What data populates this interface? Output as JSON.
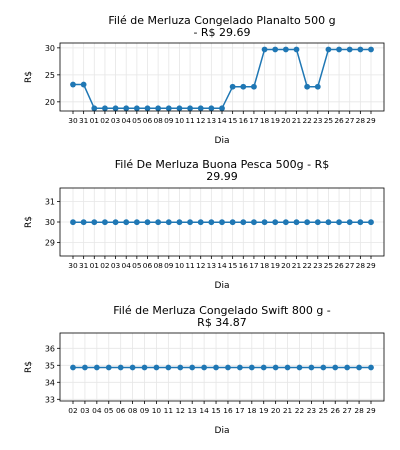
{
  "colors": {
    "series": "#1f77b4"
  },
  "chart_data": [
    {
      "type": "line",
      "title_lines": [
        "Filé de Merluza Congelado Planalto 500 g",
        "- R$ 29.69"
      ],
      "xlabel": "Dia",
      "ylabel": "R$",
      "grid": true,
      "ylim": [
        18.3,
        30.9
      ],
      "yticks": [
        20,
        25,
        30
      ],
      "categories": [
        "30",
        "31",
        "01",
        "02",
        "03",
        "04",
        "05",
        "06",
        "08",
        "09",
        "10",
        "11",
        "12",
        "13",
        "14",
        "15",
        "16",
        "17",
        "18",
        "19",
        "20",
        "21",
        "22",
        "23",
        "25",
        "26",
        "27",
        "28",
        "29"
      ],
      "values": [
        23.2,
        23.2,
        18.8,
        18.8,
        18.8,
        18.8,
        18.8,
        18.8,
        18.8,
        18.8,
        18.8,
        18.8,
        18.8,
        18.8,
        18.8,
        22.8,
        22.8,
        22.8,
        29.7,
        29.7,
        29.7,
        29.7,
        22.8,
        22.8,
        29.7,
        29.7,
        29.7,
        29.7,
        29.7
      ]
    },
    {
      "type": "line",
      "title_lines": [
        "Filé De Merluza Buona Pesca 500g - R$",
        "29.99"
      ],
      "xlabel": "Dia",
      "ylabel": "R$",
      "grid": true,
      "ylim": [
        28.35,
        31.65
      ],
      "yticks": [
        29,
        30,
        31
      ],
      "categories": [
        "30",
        "31",
        "01",
        "02",
        "03",
        "04",
        "05",
        "06",
        "08",
        "09",
        "10",
        "11",
        "12",
        "13",
        "14",
        "15",
        "16",
        "17",
        "18",
        "19",
        "20",
        "21",
        "22",
        "23",
        "25",
        "26",
        "27",
        "28",
        "29"
      ],
      "values": [
        29.99,
        29.99,
        29.99,
        29.99,
        29.99,
        29.99,
        29.99,
        29.99,
        29.99,
        29.99,
        29.99,
        29.99,
        29.99,
        29.99,
        29.99,
        29.99,
        29.99,
        29.99,
        29.99,
        29.99,
        29.99,
        29.99,
        29.99,
        29.99,
        29.99,
        29.99,
        29.99,
        29.99,
        29.99
      ]
    },
    {
      "type": "line",
      "title_lines": [
        "Filé de Merluza Congelado Swift 800 g -",
        "R$ 34.87"
      ],
      "xlabel": "Dia",
      "ylabel": "R$",
      "grid": true,
      "ylim": [
        32.9,
        36.9
      ],
      "yticks": [
        33,
        34,
        35,
        36
      ],
      "categories": [
        "02",
        "03",
        "04",
        "05",
        "06",
        "08",
        "09",
        "10",
        "11",
        "12",
        "13",
        "14",
        "15",
        "16",
        "17",
        "18",
        "19",
        "20",
        "21",
        "22",
        "23",
        "25",
        "26",
        "27",
        "28",
        "29"
      ],
      "values": [
        34.87,
        34.87,
        34.87,
        34.87,
        34.87,
        34.87,
        34.87,
        34.87,
        34.87,
        34.87,
        34.87,
        34.87,
        34.87,
        34.87,
        34.87,
        34.87,
        34.87,
        34.87,
        34.87,
        34.87,
        34.87,
        34.87,
        34.87,
        34.87,
        34.87,
        34.87
      ]
    }
  ]
}
